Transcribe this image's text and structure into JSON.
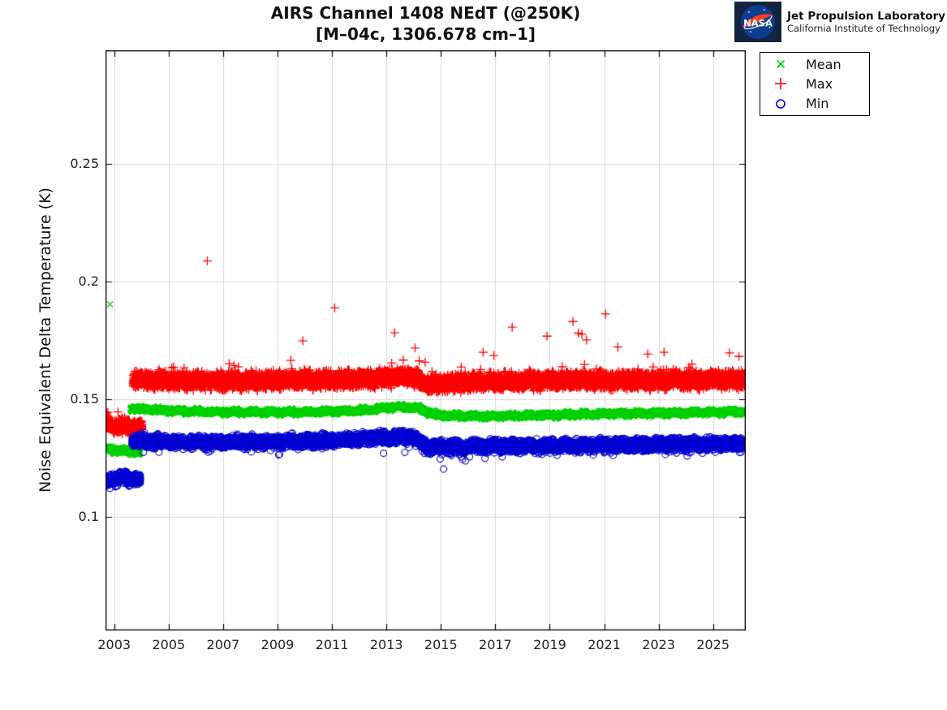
{
  "header": {
    "title_line1": "AIRS Channel 1408 NEdT (@250K)",
    "title_line2": "[M–04c, 1306.678 cm–1]"
  },
  "logo": {
    "nasa_text": "NASA",
    "org_line1": "Jet Propulsion Laboratory",
    "org_line2": "California Institute of Technology",
    "panel_color": "#13243f",
    "meatball_blue": "#0b3d91",
    "swoosh_red": "#fc3d21"
  },
  "legend": {
    "items": [
      {
        "label": "Mean",
        "marker": "x",
        "color": "#00d000"
      },
      {
        "label": "Max",
        "marker": "+",
        "color": "#ff0000"
      },
      {
        "label": "Min",
        "marker": "o",
        "color": "#0000d0"
      }
    ]
  },
  "chart_data": {
    "type": "scatter",
    "title": "AIRS Channel 1408 NEdT (@250K) [M-04c, 1306.678 cm-1]",
    "xlabel": "",
    "ylabel": "Noise Equivalent Delta Temperature (K)",
    "xlim": [
      2002.68,
      2026.2
    ],
    "ylim": [
      0.052,
      0.298
    ],
    "x_ticks": [
      2003,
      2005,
      2007,
      2009,
      2011,
      2013,
      2015,
      2017,
      2019,
      2021,
      2023,
      2025
    ],
    "y_ticks": [
      0.1,
      0.15,
      0.2,
      0.25
    ],
    "y_tick_labels": [
      "0.1",
      "0.15",
      "0.2",
      "0.25"
    ],
    "grid": true,
    "grid_color": "#d9d9d9",
    "legend_position": "outside-top-right",
    "points_per_year": 365,
    "description": "Daily NEdT statistics for AIRS channel 1408. Early checkout period 2002.7-2004.0 sits lower (Max ~0.138 K, Mean ~0.128 K, Min ~0.116 K); after 2003.9 bands step up: Max ~0.158 K, Mean ~0.145 K, Min ~0.132 K, with a small hump near 2013.5 and a downward step after the 2014 instrument event, then slow recovery through 2026.",
    "series": [
      {
        "name": "Mean",
        "marker": "x",
        "color": "#00d000",
        "epochs": [
          {
            "t0": 2002.7,
            "t1": 2003.95,
            "half": 0.0015,
            "center": [
              [
                2002.7,
                0.1292
              ],
              [
                2003.0,
                0.1284
              ],
              [
                2003.95,
                0.1277
              ]
            ]
          },
          {
            "t0": 2003.6,
            "t1": 2026.16,
            "half": 0.0013,
            "center": [
              [
                2003.6,
                0.1462
              ],
              [
                2005.0,
                0.1452
              ],
              [
                2007.0,
                0.1446
              ],
              [
                2010.0,
                0.1446
              ],
              [
                2012.0,
                0.1452
              ],
              [
                2013.3,
                0.1468
              ],
              [
                2014.05,
                0.1465
              ],
              [
                2014.9,
                0.1432
              ],
              [
                2016.5,
                0.1428
              ],
              [
                2018.0,
                0.1431
              ],
              [
                2020.0,
                0.1436
              ],
              [
                2022.0,
                0.144
              ],
              [
                2024.0,
                0.1443
              ],
              [
                2026.16,
                0.1448
              ]
            ]
          }
        ],
        "outliers": [
          [
            2002.85,
            0.1903
          ]
        ]
      },
      {
        "name": "Max",
        "marker": "+",
        "color": "#ff0000",
        "epochs": [
          {
            "t0": 2002.7,
            "t1": 2004.02,
            "half": 0.004,
            "spike_p": 0.02,
            "spike_max": 0.004,
            "center": [
              [
                2002.7,
                0.1402
              ],
              [
                2003.1,
                0.1388
              ],
              [
                2004.02,
                0.138
              ]
            ]
          },
          {
            "t0": 2003.7,
            "t1": 2026.16,
            "half": 0.0046,
            "spike_p": 0.018,
            "spike_max": 0.007,
            "center": [
              [
                2003.7,
                0.1585
              ],
              [
                2005.0,
                0.1578
              ],
              [
                2007.0,
                0.1578
              ],
              [
                2009.0,
                0.1582
              ],
              [
                2011.0,
                0.1582
              ],
              [
                2013.0,
                0.1592
              ],
              [
                2013.9,
                0.1597
              ],
              [
                2014.5,
                0.1565
              ],
              [
                2016.0,
                0.1572
              ],
              [
                2018.0,
                0.1578
              ],
              [
                2020.0,
                0.158
              ],
              [
                2022.0,
                0.1582
              ],
              [
                2024.0,
                0.158
              ],
              [
                2026.16,
                0.1585
              ]
            ]
          }
        ],
        "outliers": [
          [
            2006.42,
            0.2087
          ],
          [
            2009.93,
            0.1748
          ],
          [
            2011.1,
            0.1888
          ],
          [
            2013.3,
            0.1782
          ],
          [
            2014.05,
            0.1718
          ],
          [
            2016.55,
            0.17
          ],
          [
            2016.95,
            0.1686
          ],
          [
            2017.62,
            0.1806
          ],
          [
            2018.9,
            0.1768
          ],
          [
            2019.85,
            0.183
          ],
          [
            2020.05,
            0.1781
          ],
          [
            2020.18,
            0.1776
          ],
          [
            2020.35,
            0.1752
          ],
          [
            2021.05,
            0.1862
          ],
          [
            2021.5,
            0.1722
          ],
          [
            2022.6,
            0.1692
          ],
          [
            2023.2,
            0.17
          ],
          [
            2025.6,
            0.1697
          ],
          [
            2025.95,
            0.1682
          ]
        ]
      },
      {
        "name": "Min",
        "marker": "o",
        "color": "#0000d0",
        "epochs": [
          {
            "t0": 2002.7,
            "t1": 2003.97,
            "half": 0.003,
            "dip_p": 0.02,
            "dip_max": 0.004,
            "center": [
              [
                2002.7,
                0.1148
              ],
              [
                2003.1,
                0.1168
              ],
              [
                2003.97,
                0.1162
              ]
            ]
          },
          {
            "t0": 2003.65,
            "t1": 2026.16,
            "half": 0.0034,
            "dip_p": 0.012,
            "dip_max": 0.007,
            "center": [
              [
                2003.65,
                0.1325
              ],
              [
                2005.0,
                0.132
              ],
              [
                2007.0,
                0.1318
              ],
              [
                2009.0,
                0.132
              ],
              [
                2011.0,
                0.1326
              ],
              [
                2013.0,
                0.1338
              ],
              [
                2013.9,
                0.1342
              ],
              [
                2014.5,
                0.1298
              ],
              [
                2015.5,
                0.1298
              ],
              [
                2017.0,
                0.1302
              ],
              [
                2019.0,
                0.1303
              ],
              [
                2021.0,
                0.1306
              ],
              [
                2023.0,
                0.1309
              ],
              [
                2026.16,
                0.1313
              ]
            ]
          }
        ],
        "outliers": []
      }
    ]
  }
}
